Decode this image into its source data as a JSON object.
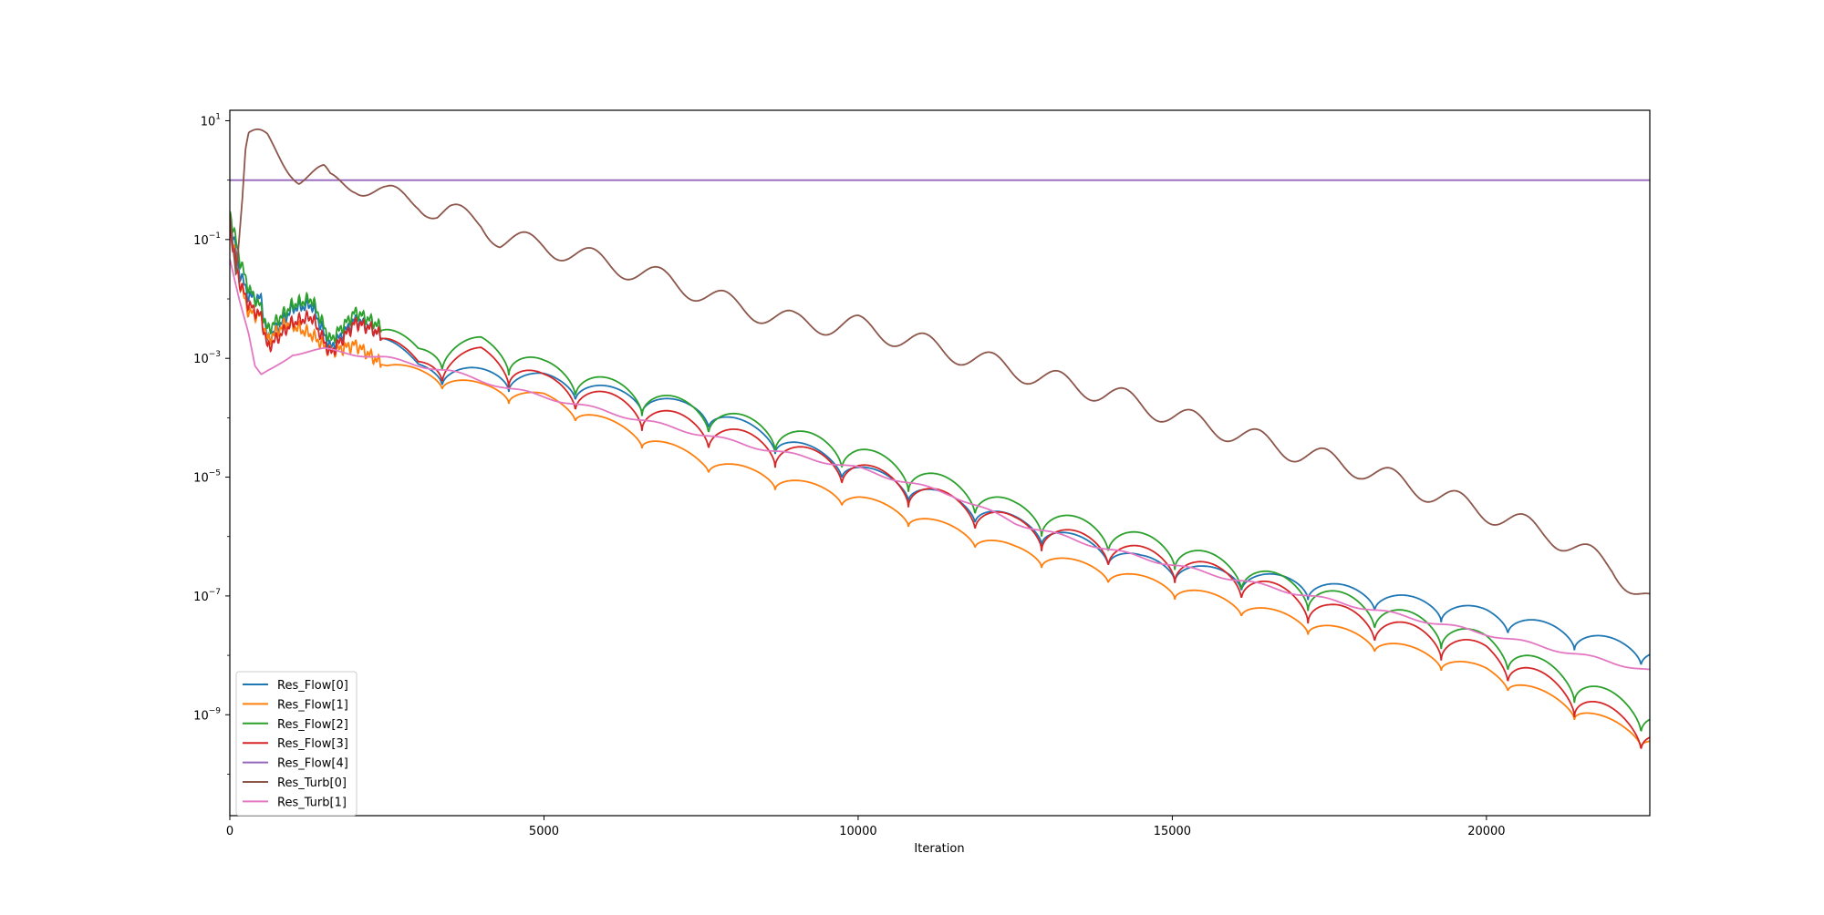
{
  "chart_data": {
    "type": "line",
    "title": "",
    "xlabel": "Iteration",
    "ylabel": "",
    "xlim": [
      0,
      22600
    ],
    "ylim": [
      2e-11,
      15
    ],
    "yscale": "log",
    "grid": false,
    "legend_position": "lower-left",
    "x_ticks": [
      0,
      5000,
      10000,
      15000,
      20000
    ],
    "x_tick_labels": [
      "0",
      "5000",
      "10000",
      "15000",
      "20000"
    ],
    "y_ticks": [
      {
        "value": 10,
        "base": "10",
        "exp": "1"
      },
      {
        "value": 0.1,
        "base": "10",
        "exp": "−1"
      },
      {
        "value": 0.001,
        "base": "10",
        "exp": "−3"
      },
      {
        "value": 1e-05,
        "base": "10",
        "exp": "−5"
      },
      {
        "value": 1e-07,
        "base": "10",
        "exp": "−7"
      },
      {
        "value": 1e-09,
        "base": "10",
        "exp": "−9"
      }
    ],
    "series": [
      {
        "name": "Res_Flow[0]",
        "color": "#1f77b4",
        "kind": "flow",
        "osc": 0.12,
        "anchors": [
          [
            0,
            0.25
          ],
          [
            150,
            0.03
          ],
          [
            300,
            0.011
          ],
          [
            500,
            0.01
          ],
          [
            600,
            0.002
          ],
          [
            1000,
            0.007
          ],
          [
            1300,
            0.008
          ],
          [
            1600,
            0.0015
          ],
          [
            2000,
            0.0045
          ],
          [
            2300,
            0.003
          ],
          [
            3000,
            0.0006
          ],
          [
            5000,
            0.0004
          ],
          [
            7500,
            0.00012
          ],
          [
            10000,
            1.2e-05
          ],
          [
            12500,
            1.6e-06
          ],
          [
            14500,
            3.5e-07
          ],
          [
            15500,
            2.3e-07
          ],
          [
            17000,
            1.5e-07
          ],
          [
            18500,
            8e-08
          ],
          [
            20000,
            4.5e-08
          ],
          [
            22600,
            1e-08
          ]
        ]
      },
      {
        "name": "Res_Flow[1]",
        "color": "#ff7f0e",
        "kind": "flow",
        "osc": 0.09,
        "anchors": [
          [
            0,
            0.2
          ],
          [
            150,
            0.02
          ],
          [
            300,
            0.006
          ],
          [
            500,
            0.005
          ],
          [
            600,
            0.002
          ],
          [
            900,
            0.004
          ],
          [
            1300,
            0.0025
          ],
          [
            1600,
            0.0013
          ],
          [
            2000,
            0.0017
          ],
          [
            2500,
            0.0007
          ],
          [
            4000,
            0.0003
          ],
          [
            5000,
            0.0002
          ],
          [
            7500,
            1.8e-05
          ],
          [
            10000,
            4e-06
          ],
          [
            12500,
            5.5e-07
          ],
          [
            15000,
            1.3e-07
          ],
          [
            17500,
            2.6e-08
          ],
          [
            20000,
            5e-09
          ],
          [
            22600,
            3.5e-10
          ]
        ]
      },
      {
        "name": "Res_Flow[2]",
        "color": "#2ca02c",
        "kind": "flow",
        "osc": 0.16,
        "anchors": [
          [
            0,
            0.3
          ],
          [
            150,
            0.05
          ],
          [
            300,
            0.015
          ],
          [
            500,
            0.007
          ],
          [
            600,
            0.003
          ],
          [
            1000,
            0.008
          ],
          [
            1300,
            0.01
          ],
          [
            1600,
            0.002
          ],
          [
            2000,
            0.006
          ],
          [
            2300,
            0.004
          ],
          [
            3000,
            0.001
          ],
          [
            4000,
            0.0015
          ],
          [
            5000,
            0.0006
          ],
          [
            7500,
            0.00011
          ],
          [
            10000,
            2.2e-05
          ],
          [
            12500,
            2.5e-06
          ],
          [
            15000,
            5.5e-07
          ],
          [
            16000,
            2.5e-07
          ],
          [
            17500,
            8.5e-08
          ],
          [
            20000,
            1.5e-08
          ],
          [
            22600,
            8e-10
          ]
        ]
      },
      {
        "name": "Res_Flow[3]",
        "color": "#d62728",
        "kind": "flow",
        "osc": 0.16,
        "anchors": [
          [
            0,
            0.15
          ],
          [
            150,
            0.02
          ],
          [
            300,
            0.008
          ],
          [
            500,
            0.005
          ],
          [
            600,
            0.0015
          ],
          [
            1000,
            0.004
          ],
          [
            1300,
            0.005
          ],
          [
            1600,
            0.0012
          ],
          [
            2000,
            0.004
          ],
          [
            2300,
            0.003
          ],
          [
            3000,
            0.0006
          ],
          [
            4000,
            0.001
          ],
          [
            5000,
            0.00035
          ],
          [
            7500,
            6e-05
          ],
          [
            10000,
            1.2e-05
          ],
          [
            12500,
            1.4e-06
          ],
          [
            15000,
            3.3e-07
          ],
          [
            16000,
            1.8e-07
          ],
          [
            17500,
            5e-08
          ],
          [
            20000,
            1e-08
          ],
          [
            22600,
            4e-10
          ]
        ]
      },
      {
        "name": "Res_Flow[4]",
        "color": "#9467bd",
        "kind": "flat",
        "osc": 0,
        "anchors": [
          [
            0,
            1
          ],
          [
            22600,
            1
          ]
        ]
      },
      {
        "name": "Res_Turb[0]",
        "color": "#8c564b",
        "kind": "turb",
        "osc": 0.18,
        "anchors": [
          [
            0,
            0.4
          ],
          [
            100,
            0.03
          ],
          [
            200,
            0.5
          ],
          [
            250,
            3
          ],
          [
            300,
            5
          ],
          [
            600,
            4.5
          ],
          [
            1000,
            1.6
          ],
          [
            1100,
            1.2
          ],
          [
            1500,
            1.2
          ],
          [
            1600,
            0.9
          ],
          [
            2000,
            0.9
          ],
          [
            2500,
            0.55
          ],
          [
            3000,
            0.45
          ],
          [
            3300,
            0.28
          ],
          [
            3500,
            0.28
          ],
          [
            4000,
            0.2
          ],
          [
            4300,
            0.1
          ],
          [
            5000,
            0.08
          ],
          [
            6000,
            0.04
          ],
          [
            7000,
            0.02
          ],
          [
            8000,
            0.008
          ],
          [
            9000,
            0.004
          ],
          [
            10000,
            0.0035
          ],
          [
            11000,
            0.0018
          ],
          [
            12000,
            0.0009
          ],
          [
            13000,
            0.00045
          ],
          [
            14000,
            0.00025
          ],
          [
            15000,
            0.00011
          ],
          [
            16000,
            5.5e-05
          ],
          [
            17000,
            2.6e-05
          ],
          [
            18000,
            1.4e-05
          ],
          [
            19000,
            6e-06
          ],
          [
            20000,
            2.6e-06
          ],
          [
            21000,
            1.1e-06
          ],
          [
            22000,
            3e-07
          ],
          [
            22600,
            8e-08
          ]
        ]
      },
      {
        "name": "Res_Turb[1]",
        "color": "#e377c2",
        "kind": "turb",
        "osc": 0.03,
        "anchors": [
          [
            0,
            0.05
          ],
          [
            150,
            0.01
          ],
          [
            300,
            0.0025
          ],
          [
            400,
            0.0007
          ],
          [
            500,
            0.0005
          ],
          [
            700,
            0.0007
          ],
          [
            1000,
            0.0012
          ],
          [
            1500,
            0.0014
          ],
          [
            2500,
            0.001
          ],
          [
            3500,
            0.0006
          ],
          [
            4500,
            0.0003
          ],
          [
            5500,
            0.00017
          ],
          [
            7000,
            7e-05
          ],
          [
            8500,
            3e-05
          ],
          [
            10000,
            1.4e-05
          ],
          [
            11500,
            5e-06
          ],
          [
            12500,
            1.7e-06
          ],
          [
            14000,
            6e-07
          ],
          [
            15500,
            2.5e-07
          ],
          [
            17000,
            1.1e-07
          ],
          [
            18500,
            5e-08
          ],
          [
            20000,
            2.3e-08
          ],
          [
            22600,
            5.5e-09
          ]
        ]
      }
    ]
  }
}
